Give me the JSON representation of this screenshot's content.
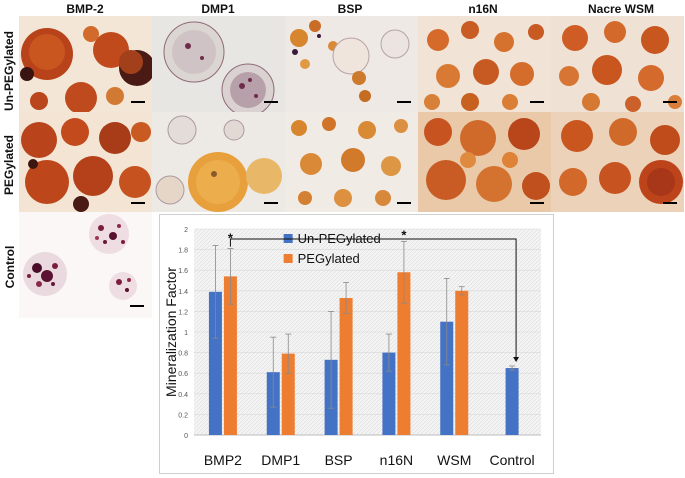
{
  "columns": [
    "BMP-2",
    "DMP1",
    "BSP",
    "n16N",
    "Nacre WSM"
  ],
  "rows": [
    "Un-PEGylated",
    "PEGylated",
    "Control"
  ],
  "colors": {
    "un_pegylated": "#4472C4",
    "pegylated": "#ED7D31",
    "stain_red": "#C8471A",
    "stain_orange": "#E2962E",
    "stain_purple": "#7A2A4A",
    "background_cream": "#F2E9DC"
  },
  "chart_data": {
    "type": "bar",
    "categories": [
      "BMP2",
      "DMP1",
      "BSP",
      "n16N",
      "WSM",
      "Control"
    ],
    "series": [
      {
        "name": "Un-PEGylated",
        "values": [
          1.39,
          0.61,
          0.73,
          0.8,
          1.1,
          0.65
        ],
        "errors": [
          0.45,
          0.34,
          0.47,
          0.18,
          0.42,
          0.02
        ]
      },
      {
        "name": "PEGylated",
        "values": [
          1.54,
          0.79,
          1.33,
          1.58,
          1.4,
          null
        ],
        "errors": [
          0.27,
          0.19,
          0.15,
          0.3,
          0.04,
          null
        ]
      }
    ],
    "ylabel": "Mineralization Factor",
    "xlabel": "",
    "ylim": [
      0,
      2
    ],
    "yticks": [
      "0",
      "0.2",
      "0.4",
      "0.6",
      "0.8",
      "1",
      "1.2",
      "1.4",
      "1.6",
      "1.8",
      "2"
    ],
    "significance_marker": "*",
    "grid": true,
    "legend_position": "top-right"
  }
}
